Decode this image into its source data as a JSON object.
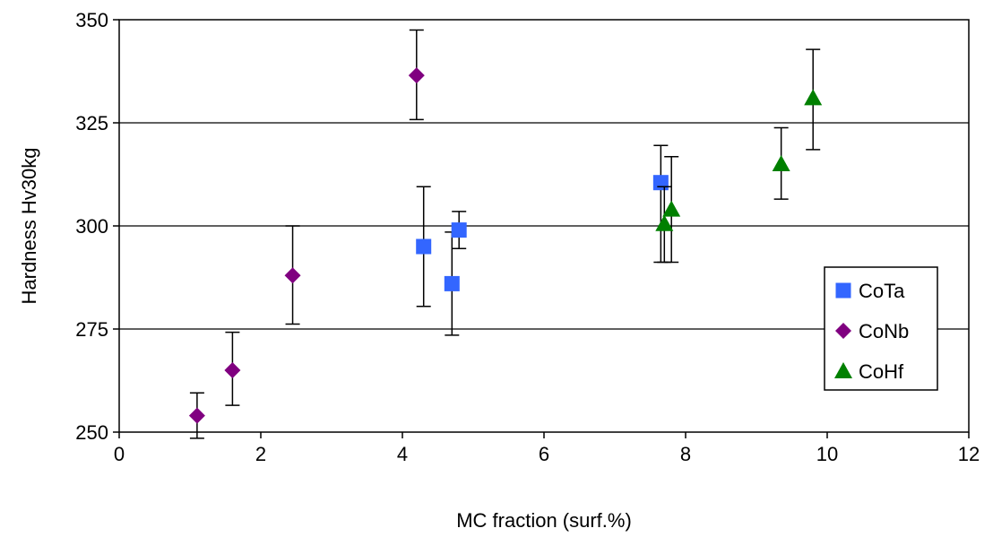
{
  "chart_data": {
    "type": "scatter",
    "title": "",
    "xlabel": "MC fraction (surf.%)",
    "ylabel": "Hardness Hv30kg",
    "xlim": [
      0,
      12
    ],
    "ylim": [
      250,
      350
    ],
    "x_ticks": [
      "0",
      "2",
      "4",
      "6",
      "8",
      "10",
      "12"
    ],
    "y_ticks": [
      "250",
      "275",
      "300",
      "325",
      "350"
    ],
    "grid": "horizontal",
    "legend_position": "right",
    "series": [
      {
        "name": "CoTa",
        "marker": "square",
        "color": "#3366ff",
        "points": [
          {
            "x": 4.3,
            "y": 295,
            "err_low": 280.5,
            "err_high": 309.5
          },
          {
            "x": 4.7,
            "y": 286,
            "err_low": 273.5,
            "err_high": 298.5
          },
          {
            "x": 4.8,
            "y": 299,
            "err_low": 294.5,
            "err_high": 303.5
          },
          {
            "x": 7.65,
            "y": 310.5,
            "err_low": 291.2,
            "err_high": 319.5
          }
        ]
      },
      {
        "name": "CoNb",
        "marker": "diamond",
        "color": "#800080",
        "points": [
          {
            "x": 1.1,
            "y": 254,
            "err_low": 248.5,
            "err_high": 259.5
          },
          {
            "x": 1.6,
            "y": 265,
            "err_low": 256.5,
            "err_high": 274.2
          },
          {
            "x": 2.45,
            "y": 288,
            "err_low": 276.2,
            "err_high": 300
          },
          {
            "x": 4.2,
            "y": 336.5,
            "err_low": 325.8,
            "err_high": 347.5
          }
        ]
      },
      {
        "name": "CoHf",
        "marker": "triangle",
        "color": "#008000",
        "points": [
          {
            "x": 7.7,
            "y": 300.5,
            "err_low": 291.2,
            "err_high": 309.5
          },
          {
            "x": 7.8,
            "y": 304,
            "err_low": 291.2,
            "err_high": 316.8
          },
          {
            "x": 9.35,
            "y": 315,
            "err_low": 306.5,
            "err_high": 323.8
          },
          {
            "x": 9.8,
            "y": 331,
            "err_low": 318.5,
            "err_high": 342.8
          }
        ]
      }
    ]
  }
}
